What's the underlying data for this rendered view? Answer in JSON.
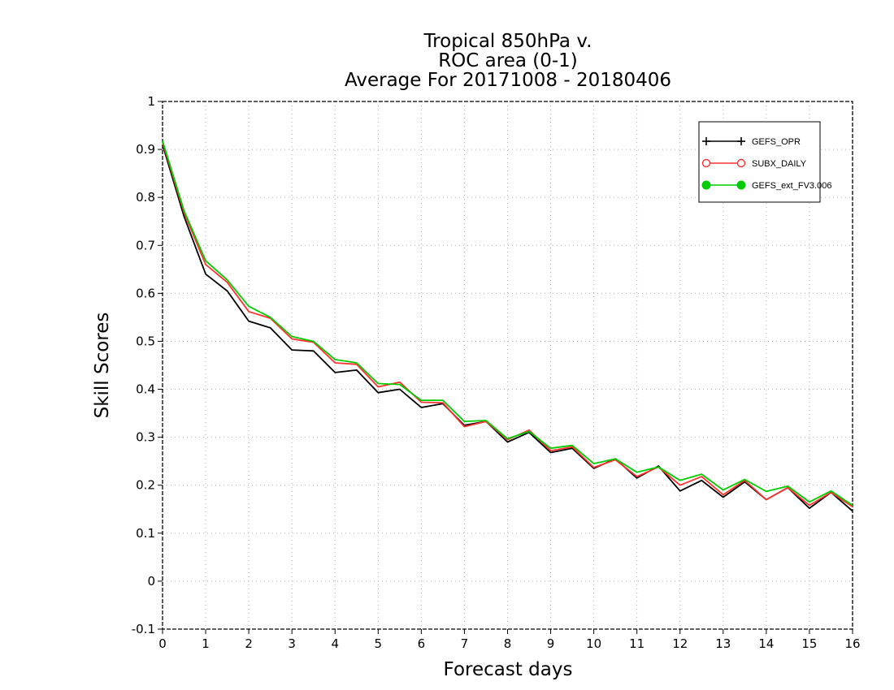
{
  "chart_data": {
    "type": "line",
    "title_lines": [
      "Tropical 850hPa v.",
      "ROC area (0-1)",
      "Average For 20171008 - 20180406"
    ],
    "xlabel": "Forecast days",
    "ylabel": "Skill Scores",
    "xlim": [
      0,
      16
    ],
    "ylim": [
      -0.1,
      1
    ],
    "xticks": [
      0,
      1,
      2,
      3,
      4,
      5,
      6,
      7,
      8,
      9,
      10,
      11,
      12,
      13,
      14,
      15,
      16
    ],
    "yticks": [
      -0.1,
      0,
      0.1,
      0.2,
      0.3,
      0.4,
      0.5,
      0.6,
      0.7,
      0.8,
      0.9,
      1
    ],
    "ytick_labels": [
      "-0.1",
      "0",
      "0.1",
      "0.2",
      "0.3",
      "0.4",
      "0.5",
      "0.6",
      "0.7",
      "0.8",
      "0.9",
      "1"
    ],
    "grid": true,
    "legend_position": "top-right",
    "x": [
      0,
      0.5,
      1,
      1.5,
      2,
      2.5,
      3,
      3.5,
      4,
      4.5,
      5,
      5.5,
      6,
      6.5,
      7,
      7.5,
      8,
      8.5,
      9,
      9.5,
      10,
      10.5,
      11,
      11.5,
      12,
      12.5,
      13,
      13.5,
      14,
      14.5,
      15,
      15.5,
      16
    ],
    "series": [
      {
        "name": "GEFS_OPR",
        "color": "#000000",
        "marker": "plus",
        "values": [
          0.91,
          0.76,
          0.64,
          0.605,
          0.542,
          0.528,
          0.482,
          0.48,
          0.435,
          0.44,
          0.393,
          0.4,
          0.362,
          0.37,
          0.325,
          0.333,
          0.29,
          0.31,
          0.268,
          0.277,
          0.235,
          0.255,
          0.215,
          0.24,
          0.188,
          0.21,
          0.175,
          0.207,
          0.17,
          0.195,
          0.152,
          0.185,
          0.146
        ]
      },
      {
        "name": "SUBX_DAILY",
        "color": "#ff3030",
        "marker": "open-circle",
        "values": [
          0.915,
          0.768,
          0.66,
          0.623,
          0.562,
          0.548,
          0.505,
          0.498,
          0.455,
          0.452,
          0.405,
          0.415,
          0.373,
          0.372,
          0.322,
          0.333,
          0.295,
          0.315,
          0.272,
          0.28,
          0.237,
          0.253,
          0.218,
          0.238,
          0.2,
          0.218,
          0.18,
          0.21,
          0.17,
          0.195,
          0.158,
          0.185,
          0.155
        ]
      },
      {
        "name": "GEFS_ext_FV3.006",
        "color": "#00cc00",
        "marker": "filled-circle",
        "values": [
          0.918,
          0.772,
          0.668,
          0.628,
          0.573,
          0.55,
          0.51,
          0.5,
          0.462,
          0.455,
          0.412,
          0.41,
          0.377,
          0.377,
          0.333,
          0.335,
          0.297,
          0.312,
          0.277,
          0.283,
          0.245,
          0.255,
          0.227,
          0.238,
          0.21,
          0.223,
          0.19,
          0.212,
          0.187,
          0.198,
          0.165,
          0.188,
          0.158
        ]
      }
    ]
  }
}
